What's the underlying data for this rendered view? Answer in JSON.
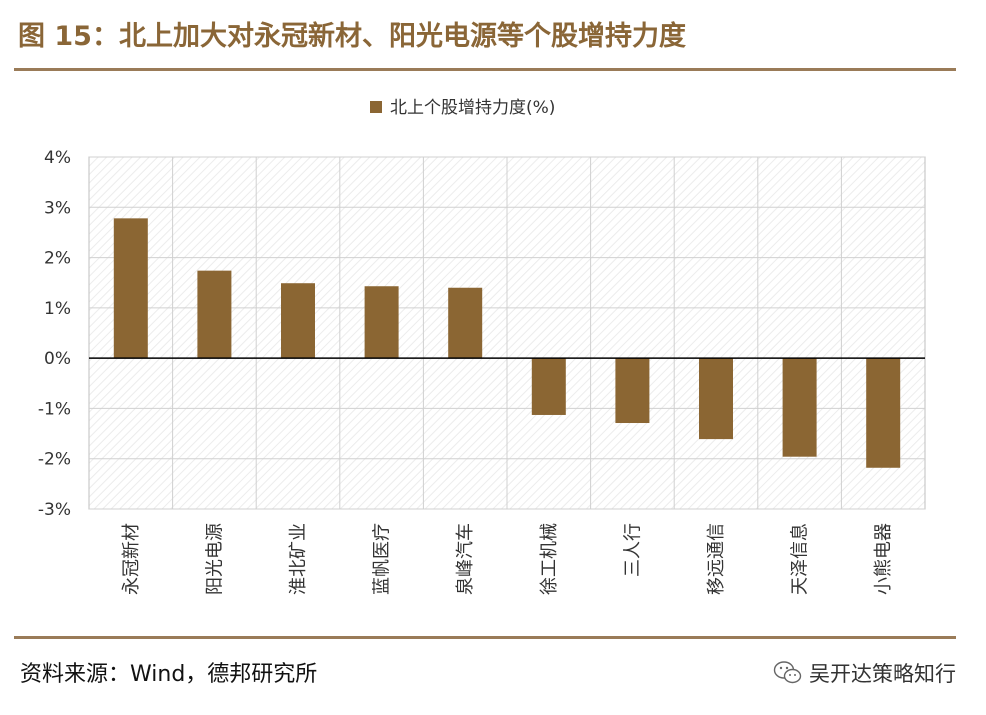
{
  "header": {
    "figure_title": "图 15：北上加大对永冠新材、阳光电源等个股增持力度"
  },
  "footer": {
    "source": "资料来源：Wind，德邦研究所",
    "watermark": "吴开达策略知行",
    "watermark_icon": "wechat-icon"
  },
  "colors": {
    "bar": "#8b6633",
    "rule": "#9a7b58",
    "title": "#8a6637"
  },
  "chart_data": {
    "type": "bar",
    "title": "",
    "legend": [
      "北上个股增持力度(%)"
    ],
    "legend_position": "top-center",
    "categories": [
      "永冠新材",
      "阳光电源",
      "淮北矿业",
      "蓝帆医疗",
      "泉峰汽车",
      "徐工机械",
      "三人行",
      "移远通信",
      "天泽信息",
      "小熊电器"
    ],
    "series": [
      {
        "name": "北上个股增持力度(%)",
        "values": [
          2.78,
          1.74,
          1.49,
          1.43,
          1.4,
          -1.13,
          -1.29,
          -1.61,
          -1.96,
          -2.18
        ]
      }
    ],
    "ylim": [
      -3,
      4
    ],
    "yticks": [
      4,
      3,
      2,
      1,
      0,
      -1,
      -2,
      -3
    ],
    "ytick_labels": [
      "4%",
      "3%",
      "2%",
      "1%",
      "0%",
      "-1%",
      "-2%",
      "-3%"
    ],
    "xlabel": "",
    "ylabel": "",
    "grid": true
  }
}
